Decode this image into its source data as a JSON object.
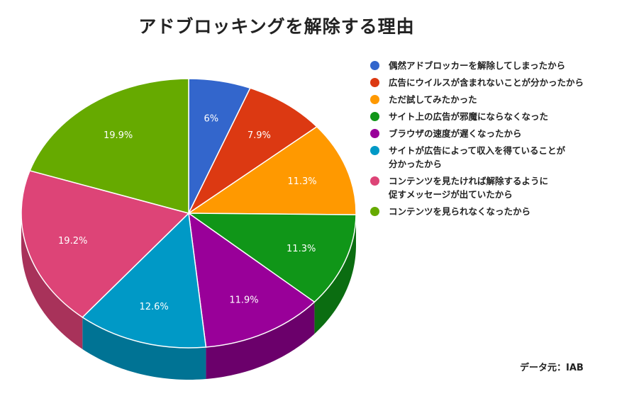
{
  "chart_data": {
    "type": "pie",
    "title": "アドブロッキングを解除する理由",
    "unit": "%",
    "slices": [
      {
        "label": "偶然アドブロッカーを解除してしまったから",
        "value": 6,
        "display": "6%",
        "color": "#3366cc",
        "side_color": "#27509e"
      },
      {
        "label": "広告にウイルスが含まれないことが分かったから",
        "value": 7.9,
        "display": "7.9%",
        "color": "#dc3912",
        "side_color": "#a82b0e"
      },
      {
        "label": "ただ試してみたかった",
        "value": 11.3,
        "display": "11.3%",
        "color": "#ff9900",
        "side_color": "#c77700"
      },
      {
        "label": "サイト上の広告が邪魔にならなくなった",
        "value": 11.3,
        "display": "11.3%",
        "color": "#109618",
        "side_color": "#0b6d11"
      },
      {
        "label": "ブラウザの速度が遅くなったから",
        "value": 11.9,
        "display": "11.9%",
        "color": "#990099",
        "side_color": "#6b006b"
      },
      {
        "label": "サイトが広告によって収入を得ていることが\n分かったから",
        "value": 12.6,
        "display": "12.6%",
        "color": "#0099c6",
        "side_color": "#007394"
      },
      {
        "label": "コンテンツを見たければ解除するように\n促すメッセージが出ていたから",
        "value": 19.2,
        "display": "19.2%",
        "color": "#dd4477",
        "side_color": "#a8325a"
      },
      {
        "label": "コンテンツを見られなくなったから",
        "value": 19.9,
        "display": "19.9%",
        "color": "#66aa00",
        "side_color": "#4d8000"
      }
    ],
    "legend_position": "right"
  },
  "source_note": "データ元：IAB"
}
